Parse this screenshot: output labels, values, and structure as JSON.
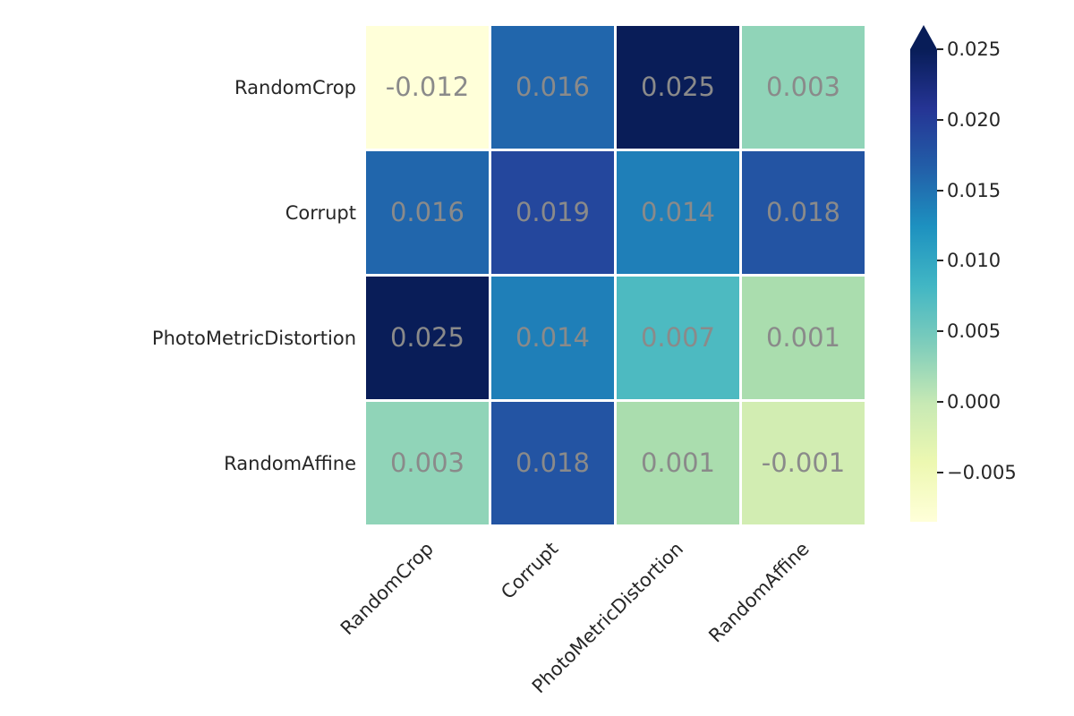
{
  "chart_data": {
    "type": "heatmap",
    "title": "",
    "xlabel": "",
    "ylabel": "",
    "row_labels": [
      "RandomCrop",
      "Corrupt",
      "PhotoMetricDistortion",
      "RandomAffine"
    ],
    "col_labels": [
      "RandomCrop",
      "Corrupt",
      "PhotoMetricDistortion",
      "RandomAffine"
    ],
    "values": [
      [
        -0.012,
        0.016,
        0.025,
        0.003
      ],
      [
        0.016,
        0.019,
        0.014,
        0.018
      ],
      [
        0.025,
        0.014,
        0.007,
        0.001
      ],
      [
        0.003,
        0.018,
        0.001,
        -0.001
      ]
    ],
    "value_labels": [
      [
        "-0.012",
        "0.016",
        "0.025",
        "0.003"
      ],
      [
        "0.016",
        "0.019",
        "0.014",
        "0.018"
      ],
      [
        "0.025",
        "0.014",
        "0.007",
        "0.001"
      ],
      [
        "0.003",
        "0.018",
        "0.001",
        "-0.001"
      ]
    ],
    "cell_colors": [
      [
        "#ffffd9",
        "#2166ac",
        "#091d58",
        "#90d4b8"
      ],
      [
        "#2166ac",
        "#24479d",
        "#1f7fb8",
        "#2354a3"
      ],
      [
        "#091d58",
        "#1f7fb8",
        "#4dbac1",
        "#aaddae"
      ],
      [
        "#90d4b8",
        "#2354a3",
        "#aaddae",
        "#d2edb2"
      ]
    ],
    "annotation_color": "#8a8a8a",
    "tick_label_color": "#262626",
    "grid_gap_color": "#ffffff",
    "colormap": "YlGnBu",
    "colorbar": {
      "orientation": "vertical",
      "extend": "max",
      "arrow_color": "#081d58",
      "tick_color": "#262626",
      "tick_labels": [
        "0.025",
        "0.020",
        "0.015",
        "0.010",
        "0.005",
        "0.000",
        "−0.005"
      ],
      "gradient_stops_bottom_to_top": [
        "#ffffd9",
        "#edf8b1",
        "#c7e9b4",
        "#7fcdbb",
        "#41b6c4",
        "#1d91c0",
        "#225ea8",
        "#253494",
        "#081d58"
      ]
    },
    "legend_position": "right",
    "grid_on": false
  }
}
